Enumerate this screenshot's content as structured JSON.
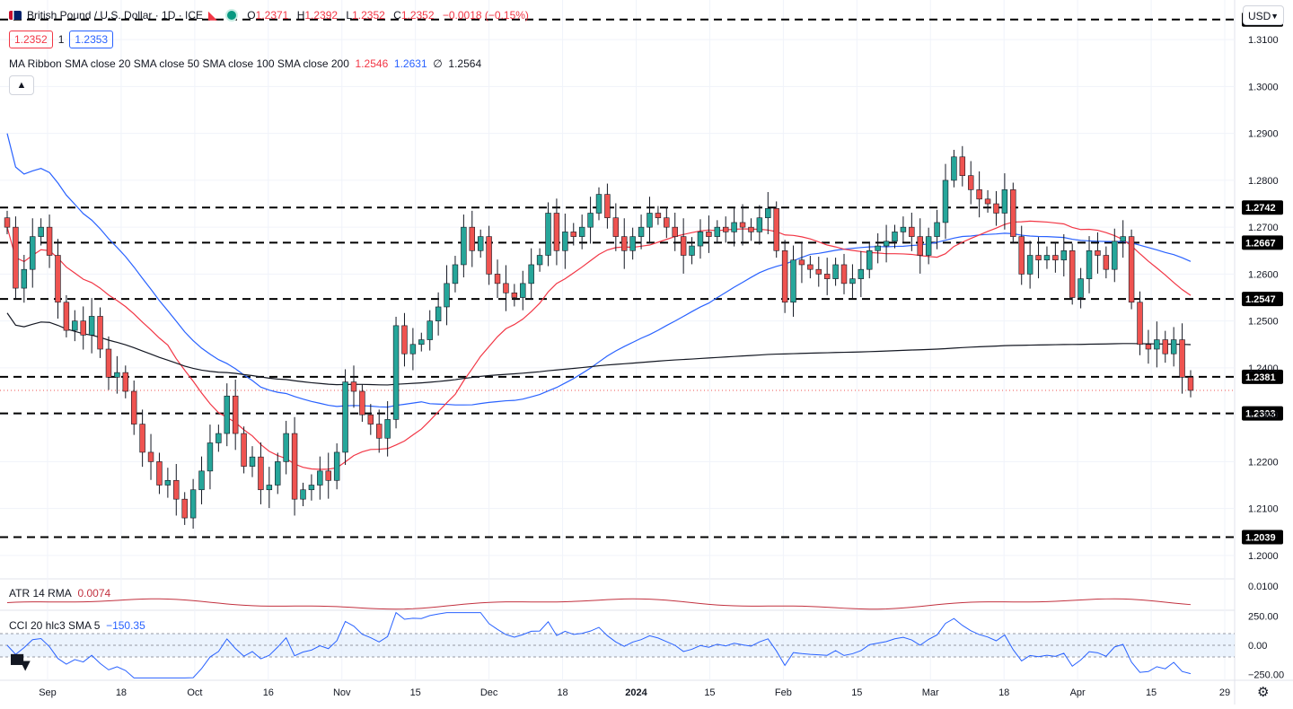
{
  "header": {
    "symbol_title": "British Pound / U.S. Dollar · 1D · ICE",
    "open_label": "O",
    "open": "1.2371",
    "high_label": "H",
    "high": "1.2392",
    "low_label": "L",
    "low": "1.2352",
    "close_label": "C",
    "close": "1.2352",
    "change": "−0.0018 (−0.15%)",
    "sell_price": "1.2352",
    "spread": "1",
    "buy_price": "1.2353",
    "currency": "USD",
    "collapse_icon": "chevron-up-icon",
    "settings_icon": "gear-icon"
  },
  "ma_ribbon": {
    "label": "MA Ribbon SMA close 20 SMA close 50 SMA close 100 SMA close 200",
    "v20": "1.2546",
    "v50": "1.2631",
    "v100": "∅",
    "v200": "1.2564"
  },
  "atr": {
    "label": "ATR 14 RMA",
    "value": "0.0074"
  },
  "cci": {
    "label": "CCI 20 hlc3 SMA 5",
    "value": "−150.35"
  },
  "colors": {
    "up": "#26a69a",
    "down": "#ef5350",
    "sma20": "#f23645",
    "sma50": "#2962ff",
    "sma200": "#131722",
    "atr": "#c2313f",
    "cci": "#2962ff"
  },
  "chart_data": {
    "type": "candlestick",
    "ylim": [
      1.195,
      1.3175
    ],
    "y_ticks": [
      "1.2000",
      "1.2100",
      "1.2200",
      "1.2300",
      "1.2400",
      "1.2500",
      "1.2600",
      "1.2700",
      "1.2800",
      "1.2900",
      "1.3000",
      "1.3100"
    ],
    "x_labels": [
      "Sep",
      "18",
      "Oct",
      "16",
      "Nov",
      "15",
      "Dec",
      "18",
      "2024",
      "15",
      "Feb",
      "15",
      "Mar",
      "18",
      "Apr",
      "15",
      "29"
    ],
    "horizontal_levels": [
      "1.3143",
      "1.2742",
      "1.2667",
      "1.2547",
      "1.2381",
      "1.2303",
      "1.2039"
    ],
    "last_price": 1.2352,
    "close": [
      1.27,
      1.257,
      1.261,
      1.268,
      1.27,
      1.264,
      1.254,
      1.248,
      1.25,
      1.247,
      1.251,
      1.244,
      1.238,
      1.239,
      1.235,
      1.228,
      1.222,
      1.22,
      1.215,
      1.216,
      1.212,
      1.208,
      1.214,
      1.218,
      1.224,
      1.226,
      1.234,
      1.226,
      1.219,
      1.221,
      1.214,
      1.215,
      1.22,
      1.226,
      1.212,
      1.214,
      1.215,
      1.218,
      1.216,
      1.222,
      1.237,
      1.235,
      1.23,
      1.228,
      1.225,
      1.229,
      1.249,
      1.243,
      1.245,
      1.246,
      1.25,
      1.253,
      1.258,
      1.262,
      1.27,
      1.265,
      1.268,
      1.26,
      1.258,
      1.256,
      1.255,
      1.258,
      1.262,
      1.264,
      1.273,
      1.265,
      1.269,
      1.268,
      1.27,
      1.273,
      1.277,
      1.272,
      1.268,
      1.265,
      1.268,
      1.27,
      1.273,
      1.272,
      1.27,
      1.268,
      1.264,
      1.266,
      1.269,
      1.268,
      1.27,
      1.269,
      1.271,
      1.27,
      1.269,
      1.272,
      1.274,
      1.265,
      1.254,
      1.263,
      1.262,
      1.261,
      1.26,
      1.259,
      1.262,
      1.258,
      1.259,
      1.261,
      1.265,
      1.266,
      1.267,
      1.269,
      1.27,
      1.268,
      1.264,
      1.268,
      1.271,
      1.28,
      1.285,
      1.281,
      1.278,
      1.276,
      1.275,
      1.273,
      1.278,
      1.268,
      1.26,
      1.264,
      1.263,
      1.264,
      1.263,
      1.265,
      1.255,
      1.259,
      1.265,
      1.264,
      1.261,
      1.267,
      1.268,
      1.254,
      1.245,
      1.244,
      1.246,
      1.243,
      1.246,
      1.238,
      1.2352
    ],
    "atr_ylim": [
      0.0065,
      0.011
    ],
    "atr_ticks": [
      "0.0100"
    ],
    "cci_ylim": [
      -300,
      300
    ],
    "cci_ticks": [
      "250.00",
      "0.00",
      "−250.00"
    ],
    "cci_band": [
      -100,
      100
    ]
  }
}
